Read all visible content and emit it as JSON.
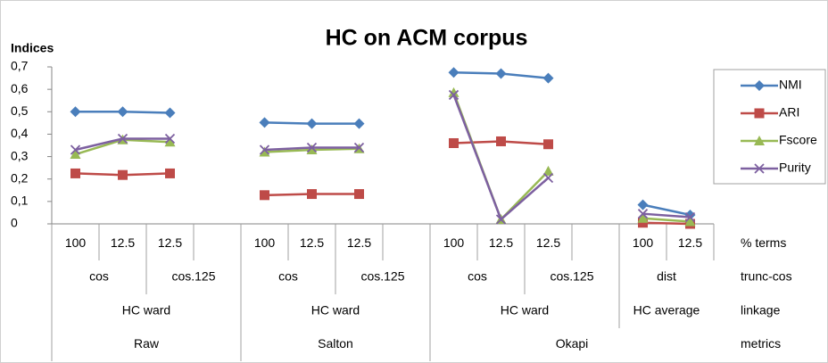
{
  "chart_data": {
    "type": "line",
    "title": "HC on ACM corpus",
    "y_axis_label": "Indices",
    "categories": [
      "100",
      "12.5",
      "12.5",
      null,
      "100",
      "12.5",
      "12.5",
      null,
      "100",
      "12.5",
      "12.5",
      null,
      "100",
      "12.5"
    ],
    "category_levels": [
      {
        "name": "trunc-cos",
        "labels": [
          "cos",
          "cos.125",
          "cos",
          "cos.125",
          "cos",
          "cos.125",
          "dist"
        ]
      },
      {
        "name": "linkage",
        "labels": [
          "HC ward",
          "HC ward",
          "HC ward",
          "HC average"
        ]
      },
      {
        "name": "metrics",
        "labels": [
          "Raw",
          "Salton",
          "Okapi"
        ]
      }
    ],
    "category_level_name": "% terms",
    "series": [
      {
        "name": "NMI",
        "color": "#4a7ebb",
        "marker": "diamond",
        "values": [
          0.5,
          0.5,
          0.495,
          null,
          0.452,
          0.447,
          0.447,
          null,
          0.675,
          0.67,
          0.65,
          null,
          0.085,
          0.04
        ]
      },
      {
        "name": "ARI",
        "color": "#be4b48",
        "marker": "square",
        "values": [
          0.225,
          0.218,
          0.225,
          null,
          0.128,
          0.133,
          0.133,
          null,
          0.36,
          0.368,
          0.355,
          null,
          0.005,
          0.0
        ]
      },
      {
        "name": "Fscore",
        "color": "#98b954",
        "marker": "triangle",
        "values": [
          0.31,
          0.375,
          0.365,
          null,
          0.32,
          0.33,
          0.335,
          null,
          0.585,
          0.02,
          0.235,
          null,
          0.025,
          0.01
        ]
      },
      {
        "name": "Purity",
        "color": "#7d60a0",
        "marker": "x",
        "values": [
          0.33,
          0.38,
          0.38,
          null,
          0.33,
          0.34,
          0.34,
          null,
          0.575,
          0.02,
          0.205,
          null,
          0.045,
          0.03
        ]
      }
    ],
    "ylim": [
      0,
      0.7
    ],
    "yticks": [
      0,
      {
        "value": 0.1,
        "label": "0,1"
      },
      {
        "value": 0.2,
        "label": "0,2"
      },
      {
        "value": 0.3,
        "label": "0,3"
      },
      {
        "value": 0.4,
        "label": "0,4"
      },
      {
        "value": 0.5,
        "label": "0,5"
      },
      {
        "value": 0.6,
        "label": "0,6"
      },
      {
        "value": 0.7,
        "label": "0,7"
      }
    ],
    "legend": "right"
  }
}
